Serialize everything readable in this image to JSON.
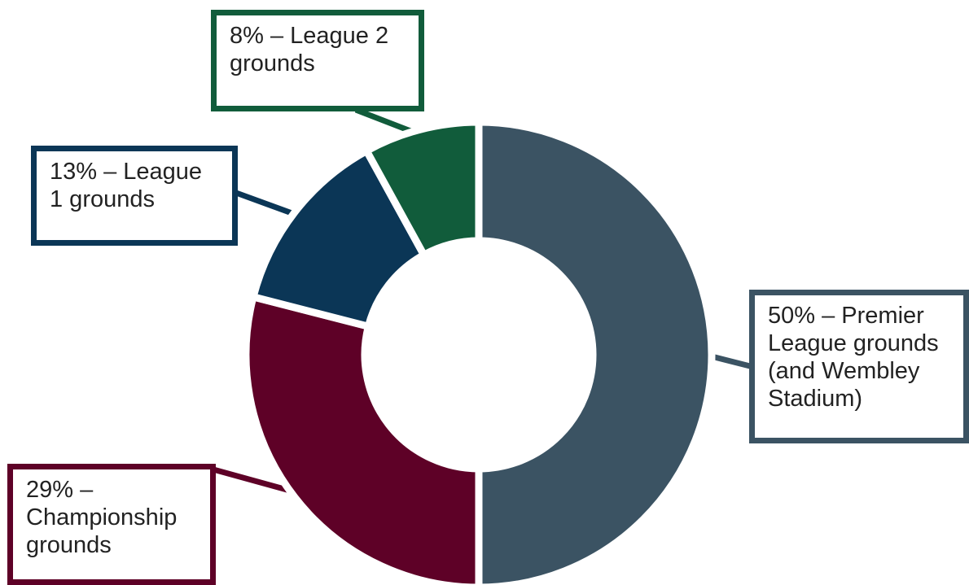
{
  "chart_data": {
    "type": "pie",
    "variant": "donut",
    "title": "",
    "slices": [
      {
        "label": "Premier League grounds (and Wembley Stadium)",
        "value": 50,
        "color": "#3b5363",
        "text_lines": [
          "50% – Premier",
          "League grounds",
          "(and Wembley",
          "Stadium)"
        ]
      },
      {
        "label": "Championship grounds",
        "value": 29,
        "color": "#5e0127",
        "text_lines": [
          "29% –",
          "Championship",
          "grounds"
        ]
      },
      {
        "label": "League 1 grounds",
        "value": 13,
        "color": "#0b3656",
        "text_lines": [
          "13% – League",
          "1 grounds"
        ]
      },
      {
        "label": "League 2 grounds",
        "value": 8,
        "color": "#115c3b",
        "text_lines": [
          "8% – League 2",
          "grounds"
        ]
      }
    ],
    "legend": "callouts"
  }
}
